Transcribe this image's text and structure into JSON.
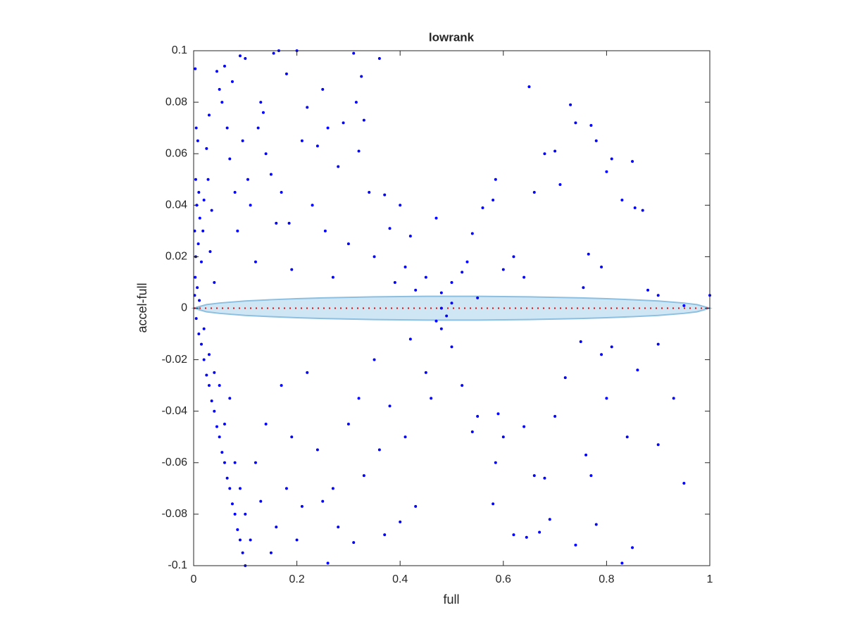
{
  "chart_data": {
    "type": "scatter",
    "title": "lowrank",
    "x_label": "full",
    "y_label": "accel-full",
    "xlim": [
      0,
      1
    ],
    "ylim": [
      -0.1,
      0.1
    ],
    "xticks": [
      0,
      0.2,
      0.4,
      0.6,
      0.8,
      1
    ],
    "yticks": [
      -0.1,
      -0.08,
      -0.06,
      -0.04,
      -0.02,
      0,
      0.02,
      0.04,
      0.06,
      0.08,
      0.1
    ],
    "color": "#0000ff",
    "x": [
      0.003,
      0.005,
      0.008,
      0.004,
      0.01,
      0.006,
      0.012,
      0.002,
      0.009,
      0.004,
      0.015,
      0.003,
      0.007,
      0.002,
      0.011,
      0.02,
      0.018,
      0.025,
      0.03,
      0.028,
      0.035,
      0.032,
      0.04,
      0.045,
      0.05,
      0.055,
      0.06,
      0.065,
      0.07,
      0.075,
      0.08,
      0.085,
      0.09,
      0.095,
      0.1,
      0.105,
      0.11,
      0.12,
      0.125,
      0.13,
      0.135,
      0.14,
      0.15,
      0.155,
      0.16,
      0.165,
      0.17,
      0.18,
      0.185,
      0.19,
      0.2,
      0.21,
      0.22,
      0.23,
      0.24,
      0.25,
      0.255,
      0.26,
      0.27,
      0.28,
      0.29,
      0.3,
      0.31,
      0.315,
      0.32,
      0.325,
      0.33,
      0.34,
      0.35,
      0.36,
      0.37,
      0.38,
      0.39,
      0.4,
      0.41,
      0.42,
      0.43,
      0.45,
      0.47,
      0.48,
      0.5,
      0.52,
      0.53,
      0.54,
      0.55,
      0.56,
      0.58,
      0.585,
      0.6,
      0.62,
      0.64,
      0.65,
      0.66,
      0.68,
      0.7,
      0.71,
      0.73,
      0.74,
      0.755,
      0.765,
      0.77,
      0.78,
      0.79,
      0.8,
      0.81,
      0.83,
      0.85,
      0.855,
      0.87,
      0.88,
      0.9,
      0.95,
      1,
      0.005,
      0.01,
      0.015,
      0.02,
      0.025,
      0.03,
      0.035,
      0.04,
      0.045,
      0.05,
      0.055,
      0.06,
      0.065,
      0.07,
      0.075,
      0.08,
      0.085,
      0.09,
      0.095,
      0.1,
      0.02,
      0.03,
      0.04,
      0.05,
      0.06,
      0.07,
      0.08,
      0.09,
      0.1,
      0.11,
      0.12,
      0.13,
      0.14,
      0.15,
      0.16,
      0.17,
      0.18,
      0.19,
      0.2,
      0.21,
      0.22,
      0.24,
      0.25,
      0.26,
      0.27,
      0.28,
      0.3,
      0.31,
      0.32,
      0.33,
      0.35,
      0.36,
      0.37,
      0.38,
      0.4,
      0.41,
      0.42,
      0.43,
      0.45,
      0.46,
      0.48,
      0.5,
      0.52,
      0.54,
      0.55,
      0.58,
      0.585,
      0.59,
      0.6,
      0.62,
      0.64,
      0.645,
      0.66,
      0.67,
      0.68,
      0.69,
      0.7,
      0.72,
      0.74,
      0.75,
      0.76,
      0.77,
      0.78,
      0.79,
      0.8,
      0.81,
      0.83,
      0.84,
      0.85,
      0.86,
      0.9,
      0.93,
      0.95,
      0.9,
      0.48,
      0.49,
      0.5,
      0.47
    ],
    "y": [
      0.093,
      0.07,
      0.065,
      0.05,
      0.045,
      0.04,
      0.035,
      0.03,
      0.025,
      0.02,
      0.018,
      0.012,
      0.008,
      0.005,
      0.003,
      0.042,
      0.03,
      0.062,
      0.075,
      0.05,
      0.038,
      0.022,
      0.01,
      0.092,
      0.085,
      0.08,
      0.094,
      0.07,
      0.058,
      0.088,
      0.045,
      0.03,
      0.098,
      0.065,
      0.097,
      0.05,
      0.04,
      0.018,
      0.07,
      0.08,
      0.076,
      0.06,
      0.052,
      0.099,
      0.033,
      0.1,
      0.045,
      0.091,
      0.033,
      0.015,
      0.1,
      0.065,
      0.078,
      0.04,
      0.063,
      0.085,
      0.03,
      0.07,
      0.012,
      0.055,
      0.072,
      0.025,
      0.099,
      0.08,
      0.061,
      0.09,
      0.073,
      0.045,
      0.02,
      0.097,
      0.044,
      0.031,
      0.01,
      0.04,
      0.016,
      0.028,
      0.007,
      0.012,
      0.035,
      0.006,
      0.01,
      0.014,
      0.018,
      0.029,
      0.004,
      0.039,
      0.042,
      0.05,
      0.015,
      0.02,
      0.012,
      0.086,
      0.045,
      0.06,
      0.061,
      0.048,
      0.079,
      0.072,
      0.008,
      0.021,
      0.071,
      0.065,
      0.016,
      0.053,
      0.058,
      0.042,
      0.057,
      0.039,
      0.038,
      0.007,
      0.005,
      0.001,
      0.005,
      -0.004,
      -0.01,
      -0.014,
      -0.02,
      -0.026,
      -0.03,
      -0.036,
      -0.04,
      -0.046,
      -0.05,
      -0.056,
      -0.06,
      -0.066,
      -0.07,
      -0.076,
      -0.08,
      -0.086,
      -0.09,
      -0.095,
      -0.1,
      -0.008,
      -0.018,
      -0.025,
      -0.03,
      -0.045,
      -0.035,
      -0.06,
      -0.07,
      -0.08,
      -0.09,
      -0.06,
      -0.075,
      -0.045,
      -0.095,
      -0.085,
      -0.03,
      -0.07,
      -0.05,
      -0.09,
      -0.077,
      -0.025,
      -0.055,
      -0.075,
      -0.099,
      -0.07,
      -0.085,
      -0.045,
      -0.091,
      -0.035,
      -0.065,
      -0.02,
      -0.055,
      -0.088,
      -0.038,
      -0.083,
      -0.05,
      -0.012,
      -0.077,
      -0.025,
      -0.035,
      -0.008,
      -0.015,
      -0.03,
      -0.048,
      -0.042,
      -0.076,
      -0.06,
      -0.041,
      -0.05,
      -0.088,
      -0.046,
      -0.089,
      -0.065,
      -0.087,
      -0.066,
      -0.082,
      -0.042,
      -0.027,
      -0.092,
      -0.013,
      -0.057,
      -0.065,
      -0.084,
      -0.018,
      -0.035,
      -0.015,
      -0.099,
      -0.05,
      -0.093,
      -0.024,
      -0.053,
      -0.035,
      -0.068,
      -0.014,
      0.0,
      -0.003,
      0.002,
      -0.005
    ],
    "band": {
      "x": [
        0,
        0.025,
        0.05,
        0.1,
        0.15,
        0.2,
        0.25,
        0.3,
        0.35,
        0.4,
        0.45,
        0.5,
        0.55,
        0.6,
        0.65,
        0.7,
        0.75,
        0.8,
        0.85,
        0.9,
        0.95,
        0.975,
        1
      ],
      "upper": [
        0,
        0.0014,
        0.002,
        0.0028,
        0.0033,
        0.0037,
        0.004,
        0.0042,
        0.0044,
        0.0045,
        0.0046,
        0.0046,
        0.0046,
        0.0045,
        0.0044,
        0.0042,
        0.004,
        0.0037,
        0.0033,
        0.0028,
        0.002,
        0.0014,
        0
      ],
      "lower": [
        0,
        -0.0014,
        -0.002,
        -0.0028,
        -0.0033,
        -0.0037,
        -0.004,
        -0.0042,
        -0.0044,
        -0.0045,
        -0.0046,
        -0.0046,
        -0.0046,
        -0.0045,
        -0.0044,
        -0.0042,
        -0.004,
        -0.0037,
        -0.0033,
        -0.0028,
        -0.002,
        -0.0014,
        0
      ],
      "color": "#cfe6f5",
      "edge_color": "#8cbfe0"
    },
    "reference_line": {
      "x": [
        0,
        1
      ],
      "y": [
        0,
        0
      ],
      "color": "#ff0000"
    }
  }
}
